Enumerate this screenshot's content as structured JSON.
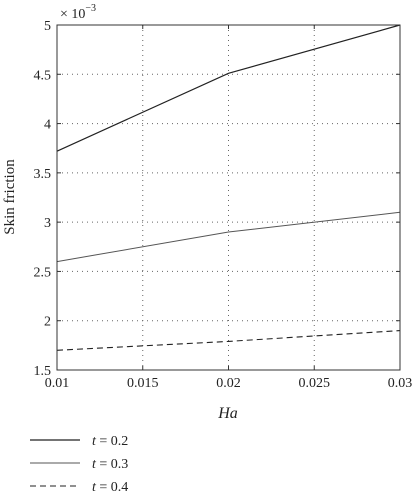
{
  "chart_data": {
    "type": "line",
    "xlabel": "Ha",
    "ylabel": "Skin friction",
    "y_multiplier_label": "× 10",
    "y_multiplier_exponent": "−3",
    "xlim": [
      0.01,
      0.03
    ],
    "ylim": [
      1.5,
      5
    ],
    "x_ticks": [
      {
        "value": 0.01,
        "label": "0.01"
      },
      {
        "value": 0.015,
        "label": "0.015"
      },
      {
        "value": 0.02,
        "label": "0.02"
      },
      {
        "value": 0.025,
        "label": "0.025"
      },
      {
        "value": 0.03,
        "label": "0.03"
      }
    ],
    "y_ticks": [
      {
        "value": 1.5,
        "label": "1.5"
      },
      {
        "value": 2,
        "label": "2"
      },
      {
        "value": 2.5,
        "label": "2.5"
      },
      {
        "value": 3,
        "label": "3"
      },
      {
        "value": 3.5,
        "label": "3.5"
      },
      {
        "value": 4,
        "label": "4"
      },
      {
        "value": 4.5,
        "label": "4.5"
      },
      {
        "value": 5,
        "label": "5"
      }
    ],
    "grid": true,
    "legend_position": "below",
    "series": [
      {
        "name": "t = 0.2",
        "name_var": "t",
        "name_rest": " = 0.2",
        "style": "solid",
        "color": "#222222",
        "x": [
          0.01,
          0.02,
          0.03
        ],
        "y": [
          3.72,
          4.51,
          5.0
        ]
      },
      {
        "name": "t = 0.3",
        "name_var": "t",
        "name_rest": " = 0.3",
        "style": "solid-thin",
        "color": "#555555",
        "x": [
          0.01,
          0.02,
          0.03
        ],
        "y": [
          2.6,
          2.9,
          3.1
        ]
      },
      {
        "name": "t = 0.4",
        "name_var": "t",
        "name_rest": " = 0.4",
        "style": "dashed",
        "color": "#222222",
        "x": [
          0.01,
          0.02,
          0.03
        ],
        "y": [
          1.7,
          1.79,
          1.9
        ]
      }
    ]
  }
}
